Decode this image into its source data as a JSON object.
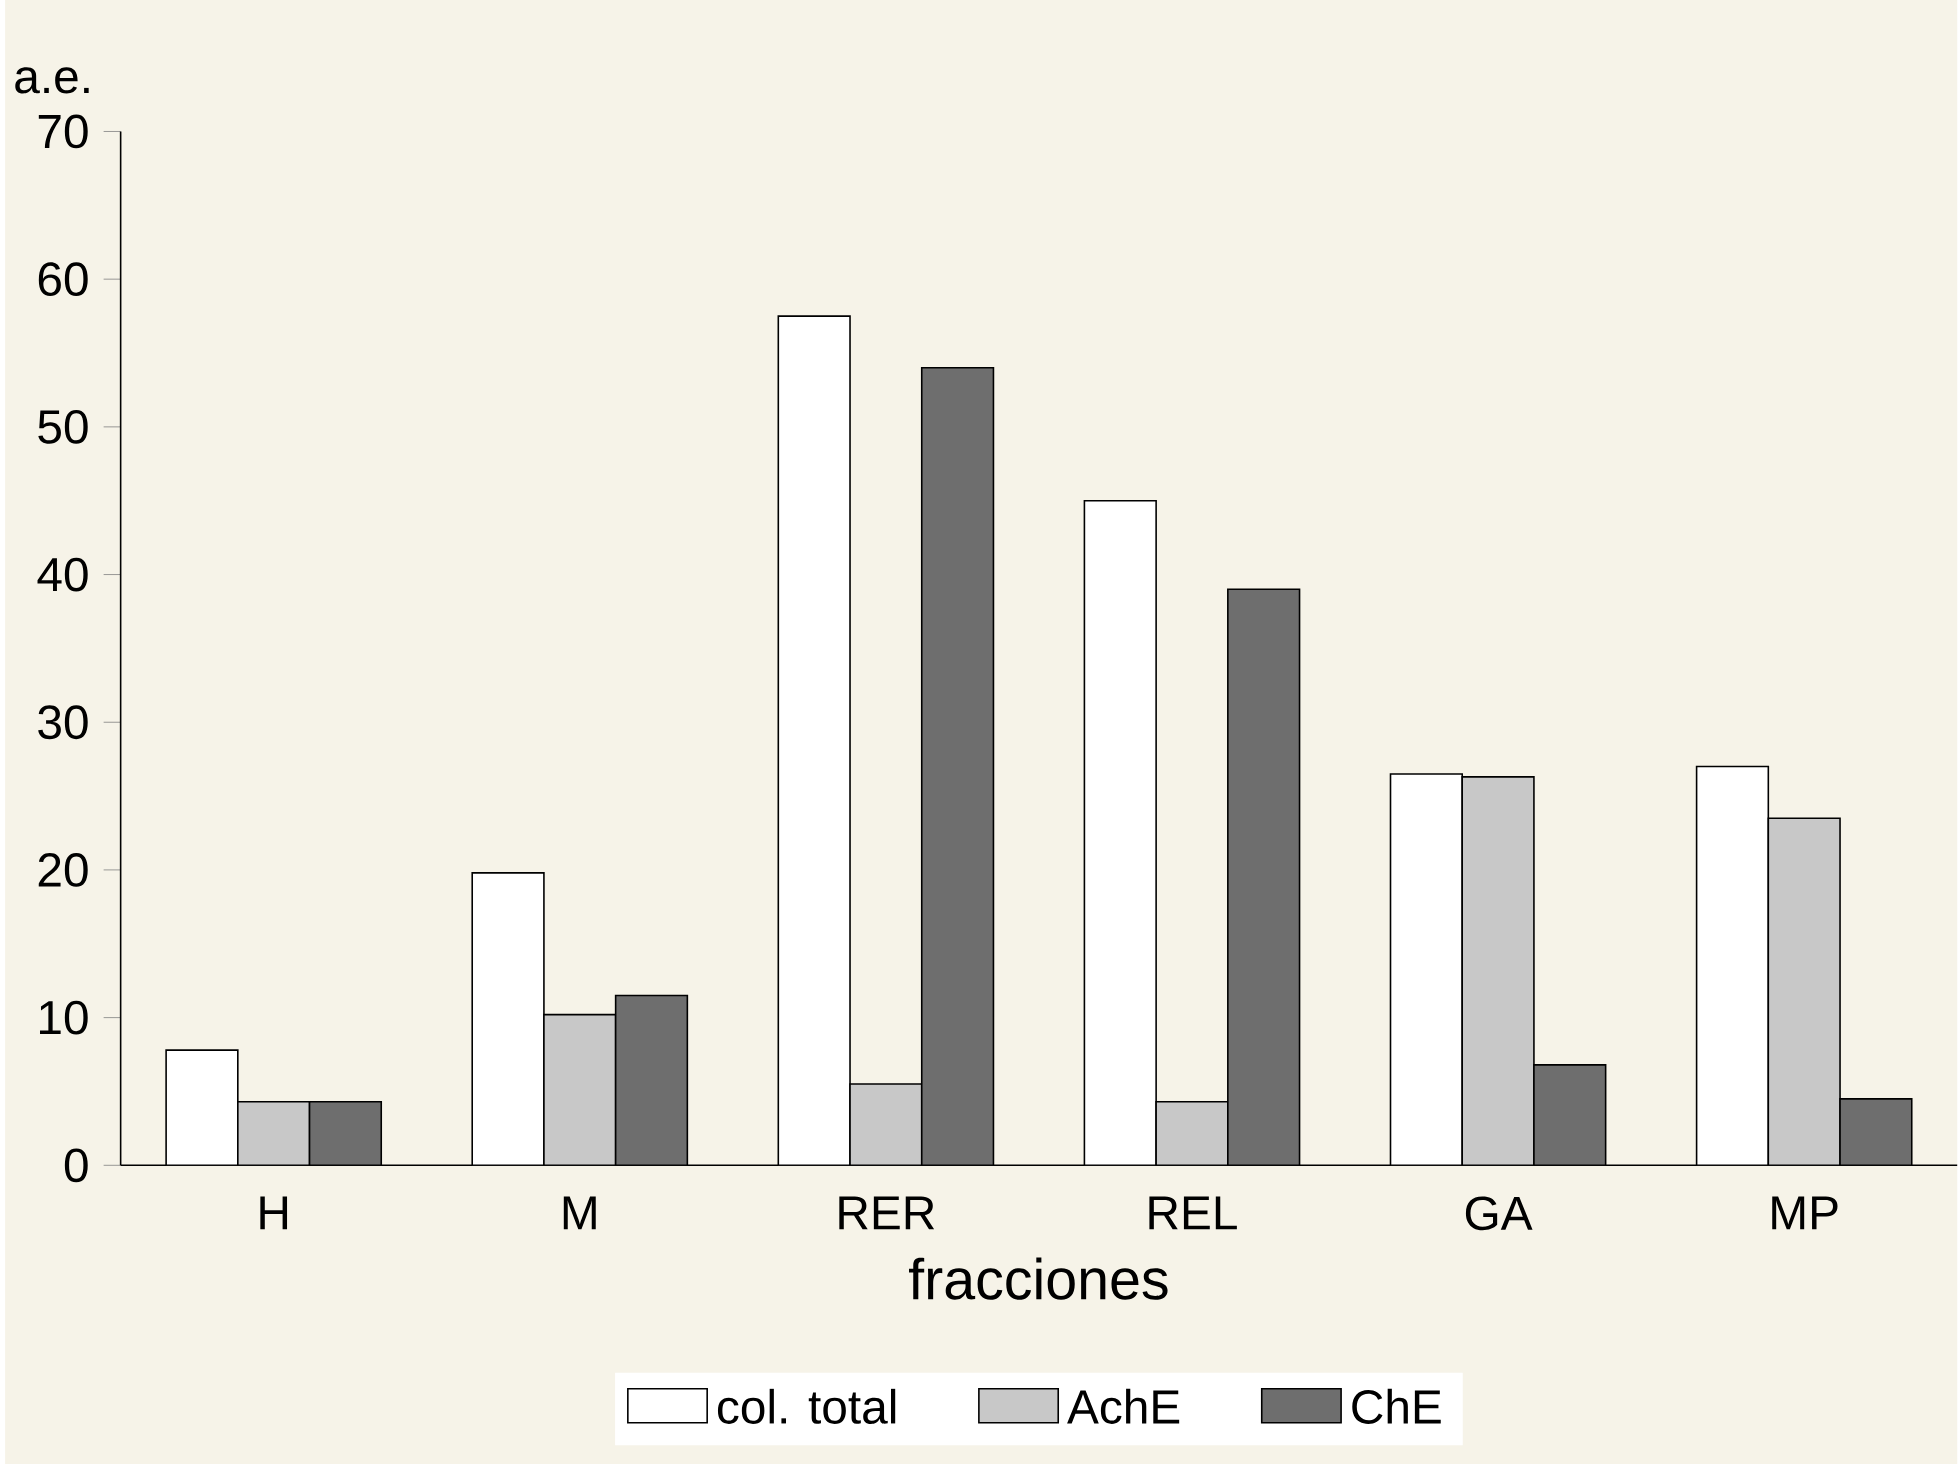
{
  "chart_data": {
    "type": "bar",
    "xlabel": "fracciones",
    "ylabel": "a.e.",
    "categories": [
      "H",
      "M",
      "RER",
      "REL",
      "GA",
      "MP"
    ],
    "series": [
      {
        "name": "col. total",
        "color": "#ffffff",
        "values": [
          7.8,
          19.8,
          57.5,
          45,
          26.5,
          27
        ]
      },
      {
        "name": "AchE",
        "color": "#c8c8c8",
        "values": [
          4.3,
          10.2,
          5.5,
          4.3,
          26.3,
          23.5
        ]
      },
      {
        "name": "ChE",
        "color": "#6e6e6e",
        "values": [
          4.3,
          11.5,
          54,
          39,
          6.8,
          4.5
        ]
      }
    ],
    "ylim": [
      0,
      70
    ],
    "yticks": [
      0,
      10,
      20,
      30,
      40,
      50,
      60,
      70
    ],
    "legend": "bottom",
    "grid": false
  }
}
